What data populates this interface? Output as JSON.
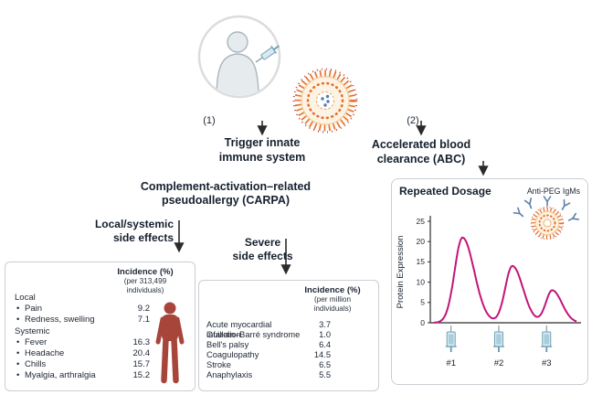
{
  "ui": {
    "bullet": "•"
  },
  "steps": {
    "one": {
      "num": "(1)",
      "line1": "Trigger innate",
      "line2": "immune system"
    },
    "two": {
      "num": "(2)",
      "line1": "Accelerated blood",
      "line2": "clearance (ABC)"
    }
  },
  "carpa": {
    "line1": "Complement-activation–related",
    "line2": "pseudoallergy (CARPA)"
  },
  "branches": {
    "local": {
      "line1": "Local/systemic",
      "line2": "side effects"
    },
    "severe": {
      "line1": "Severe",
      "line2": "side effects"
    }
  },
  "local_box": {
    "header": {
      "title": "Incidence (%)",
      "sub1": "(per 313,499",
      "sub2": "individuals)"
    },
    "sections": [
      {
        "name": "Local",
        "items": [
          {
            "label": "Pain",
            "value": "9.2"
          },
          {
            "label": "Redness, swelling",
            "value": "7.1"
          }
        ]
      },
      {
        "name": "Systemic",
        "items": [
          {
            "label": "Fever",
            "value": "16.3"
          },
          {
            "label": "Headache",
            "value": "20.4"
          },
          {
            "label": "Chills",
            "value": "15.7"
          },
          {
            "label": "Myalgia, arthralgia",
            "value": "15.2"
          }
        ]
      }
    ]
  },
  "severe_box": {
    "header": {
      "title": "Incidence (%)",
      "sub1": "(per million",
      "sub2": "individuals)"
    },
    "rows": [
      {
        "label": "Acute myocardial infarction",
        "value": "3.7"
      },
      {
        "label": "Guillain–Barré syndrome",
        "value": "1.0"
      },
      {
        "label": "Bell's palsy",
        "value": "6.4"
      },
      {
        "label": "Coagulopathy",
        "value": "14.5"
      },
      {
        "label": "Stroke",
        "value": "6.5"
      },
      {
        "label": "Anaphylaxis",
        "value": "5.5"
      }
    ]
  },
  "chart_data": {
    "type": "line",
    "title": "Repeated Dosage",
    "annotation": "Anti-PEG IgMs",
    "ylabel": "Protein Expression",
    "ylim": [
      0,
      25
    ],
    "yticks": [
      0,
      5,
      10,
      15,
      20,
      25
    ],
    "grid": false,
    "x_labels": [
      "#1",
      "#2",
      "#3"
    ],
    "dose_positions": [
      0.12,
      0.455,
      0.79
    ],
    "peaks": [
      {
        "center": 0.2,
        "height": 21,
        "width": 0.055
      },
      {
        "center": 0.55,
        "height": 14,
        "width": 0.05
      },
      {
        "center": 0.83,
        "height": 8,
        "width": 0.045
      }
    ],
    "line_color": "#c2157b"
  },
  "icons": {
    "person": "person-with-syringe-icon",
    "lnp": "lipid-nanoparticle-icon",
    "igm": "anti-peg-igm-icon",
    "body": "human-body-icon",
    "syringe": "syringe-icon"
  },
  "colors": {
    "curve": "#c2157b",
    "body_red": "#a8453b",
    "lnp_orange": "#e4702d",
    "arrow": "#2b2b2b",
    "syringe_blue": "#d8eaf1",
    "box_border": "#c9ced4"
  }
}
